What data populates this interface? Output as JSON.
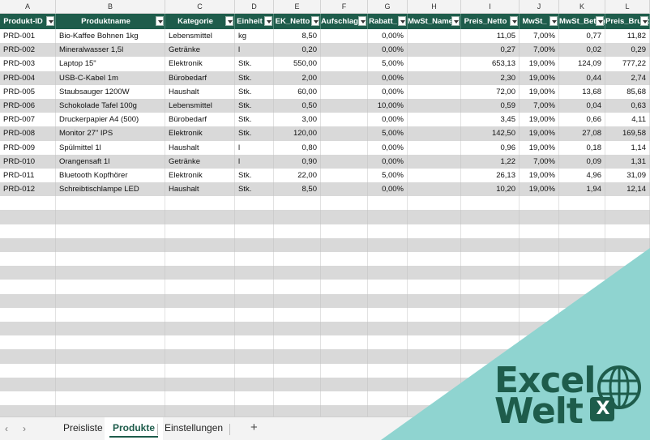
{
  "columns": [
    {
      "letter": "A",
      "width": 69
    },
    {
      "letter": "B",
      "width": 135
    },
    {
      "letter": "C",
      "width": 86
    },
    {
      "letter": "D",
      "width": 48
    },
    {
      "letter": "E",
      "width": 58
    },
    {
      "letter": "F",
      "width": 58
    },
    {
      "letter": "G",
      "width": 49
    },
    {
      "letter": "H",
      "width": 66
    },
    {
      "letter": "I",
      "width": 72
    },
    {
      "letter": "J",
      "width": 49
    },
    {
      "letter": "K",
      "width": 57
    },
    {
      "letter": "L",
      "width": 55
    }
  ],
  "headers": [
    "Produkt-ID",
    "Produktname",
    "Kategorie",
    "Einheit",
    "EK_Netto",
    "Aufschlag",
    "Rabatt_",
    "MwSt_Name",
    "Preis_Netto",
    "MwSt_",
    "MwSt_Betrag",
    "Preis_Brutto"
  ],
  "rows": [
    [
      "PRD-001",
      "Bio-Kaffee Bohnen 1kg",
      "Lebensmittel",
      "kg",
      "8,50",
      "",
      "0,00%",
      "",
      "11,05",
      "7,00%",
      "0,77",
      "11,82"
    ],
    [
      "PRD-002",
      "Mineralwasser 1,5l",
      "Getränke",
      "l",
      "0,20",
      "",
      "0,00%",
      "",
      "0,27",
      "7,00%",
      "0,02",
      "0,29"
    ],
    [
      "PRD-003",
      "Laptop 15\"",
      "Elektronik",
      "Stk.",
      "550,00",
      "",
      "5,00%",
      "",
      "653,13",
      "19,00%",
      "124,09",
      "777,22"
    ],
    [
      "PRD-004",
      "USB-C-Kabel 1m",
      "Bürobedarf",
      "Stk.",
      "2,00",
      "",
      "0,00%",
      "",
      "2,30",
      "19,00%",
      "0,44",
      "2,74"
    ],
    [
      "PRD-005",
      "Staubsauger 1200W",
      "Haushalt",
      "Stk.",
      "60,00",
      "",
      "0,00%",
      "",
      "72,00",
      "19,00%",
      "13,68",
      "85,68"
    ],
    [
      "PRD-006",
      "Schokolade Tafel 100g",
      "Lebensmittel",
      "Stk.",
      "0,50",
      "",
      "10,00%",
      "",
      "0,59",
      "7,00%",
      "0,04",
      "0,63"
    ],
    [
      "PRD-007",
      "Druckerpapier A4 (500)",
      "Bürobedarf",
      "Stk.",
      "3,00",
      "",
      "0,00%",
      "",
      "3,45",
      "19,00%",
      "0,66",
      "4,11"
    ],
    [
      "PRD-008",
      "Monitor 27\" IPS",
      "Elektronik",
      "Stk.",
      "120,00",
      "",
      "5,00%",
      "",
      "142,50",
      "19,00%",
      "27,08",
      "169,58"
    ],
    [
      "PRD-009",
      "Spülmittel 1l",
      "Haushalt",
      "l",
      "0,80",
      "",
      "0,00%",
      "",
      "0,96",
      "19,00%",
      "0,18",
      "1,14"
    ],
    [
      "PRD-010",
      "Orangensaft 1l",
      "Getränke",
      "l",
      "0,90",
      "",
      "0,00%",
      "",
      "1,22",
      "7,00%",
      "0,09",
      "1,31"
    ],
    [
      "PRD-011",
      "Bluetooth Kopfhörer",
      "Elektronik",
      "Stk.",
      "22,00",
      "",
      "5,00%",
      "",
      "26,13",
      "19,00%",
      "4,96",
      "31,09"
    ],
    [
      "PRD-012",
      "Schreibtischlampe LED",
      "Haushalt",
      "Stk.",
      "8,50",
      "",
      "0,00%",
      "",
      "10,20",
      "19,00%",
      "1,94",
      "12,14"
    ]
  ],
  "right_aligned_columns": [
    4,
    5,
    6,
    8,
    9,
    10,
    11
  ],
  "empty_rows": 16,
  "tabs": [
    "Preisliste",
    "Produkte",
    "Einstellungen"
  ],
  "active_tab": "Produkte",
  "add_tab_label": "+",
  "nav": {
    "prev": "‹",
    "next": "›"
  },
  "logo": {
    "line1": "Excel",
    "line2": "Welt",
    "badge": "X"
  },
  "colors": {
    "header_bg": "#1e5c4b",
    "stripe": "#d9d9d9",
    "logo_bg": "#8fd4d0",
    "brand": "#1e5c4b"
  }
}
